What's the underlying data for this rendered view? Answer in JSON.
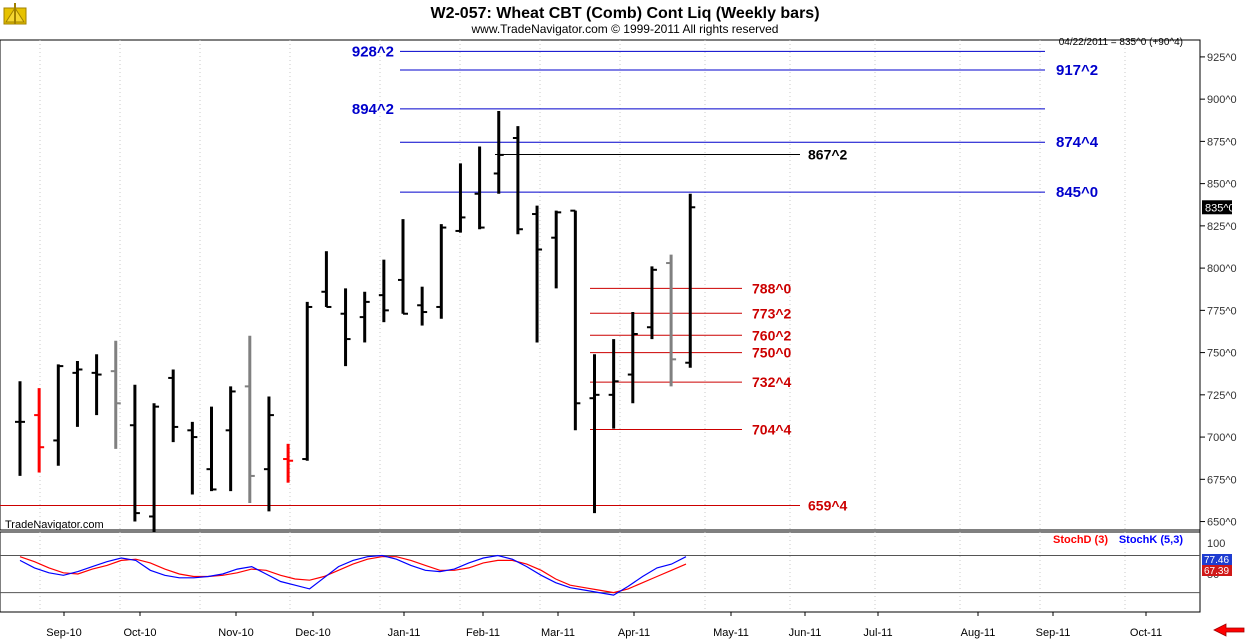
{
  "header": {
    "title": "W2-057:  Wheat CBT (Comb) Cont Liq  (Weekly bars)",
    "subtitle": "www.TradeNavigator.com © 1999-2011 All rights reserved",
    "quote": "04/22/2011 = 835^0 (+90^4)",
    "watermark": "TradeNavigator.com",
    "last_price_label": "835^0"
  },
  "colors": {
    "bar": "#000000",
    "bar_down": "#ff0000",
    "bar_neutral": "#808080",
    "level_blue": "#0000cc",
    "level_red": "#cc0000",
    "stoch_d": "#ff0000",
    "stoch_k": "#0000ff",
    "nav_arrow": "#ff0000"
  },
  "chart_data": [
    {
      "type": "ohlc",
      "y_axis": {
        "min": 645,
        "max": 935,
        "ticks": [
          "650^0",
          "675^0",
          "700^0",
          "725^0",
          "750^0",
          "775^0",
          "800^0",
          "825^0",
          "850^0",
          "875^0",
          "900^0",
          "925^0"
        ],
        "tick_values": [
          650,
          675,
          700,
          725,
          750,
          775,
          800,
          825,
          850,
          875,
          900,
          925
        ]
      },
      "x_axis": {
        "labels": [
          "Sep-10",
          "Oct-10",
          "Nov-10",
          "Dec-10",
          "Jan-11",
          "Feb-11",
          "Mar-11",
          "Apr-11",
          "May-11",
          "Jun-11",
          "Jul-11",
          "Aug-11",
          "Sep-11",
          "Oct-11"
        ]
      },
      "bars": [
        {
          "o": 709,
          "h": 733,
          "l": 677,
          "c": 709,
          "col": "bar"
        },
        {
          "o": 713,
          "h": 729,
          "l": 679,
          "c": 694,
          "col": "bar_down"
        },
        {
          "o": 698,
          "h": 743,
          "l": 683,
          "c": 742,
          "col": "bar"
        },
        {
          "o": 738,
          "h": 745,
          "l": 706,
          "c": 740,
          "col": "bar"
        },
        {
          "o": 738,
          "h": 749,
          "l": 713,
          "c": 737,
          "col": "bar"
        },
        {
          "o": 739,
          "h": 757,
          "l": 693,
          "c": 720,
          "col": "bar_neutral"
        },
        {
          "o": 707,
          "h": 731,
          "l": 650,
          "c": 655,
          "col": "bar"
        },
        {
          "o": 653,
          "h": 720,
          "l": 644,
          "c": 718,
          "col": "bar"
        },
        {
          "o": 735,
          "h": 740,
          "l": 697,
          "c": 706,
          "col": "bar"
        },
        {
          "o": 704,
          "h": 709,
          "l": 666,
          "c": 700,
          "col": "bar"
        },
        {
          "o": 681,
          "h": 718,
          "l": 668,
          "c": 669,
          "col": "bar"
        },
        {
          "o": 704,
          "h": 730,
          "l": 668,
          "c": 727,
          "col": "bar"
        },
        {
          "o": 730,
          "h": 760,
          "l": 661,
          "c": 677,
          "col": "bar_neutral"
        },
        {
          "o": 681,
          "h": 724,
          "l": 656,
          "c": 713,
          "col": "bar"
        },
        {
          "o": 687,
          "h": 696,
          "l": 673,
          "c": 686,
          "col": "bar_down"
        },
        {
          "o": 687,
          "h": 780,
          "l": 686,
          "c": 777,
          "col": "bar"
        },
        {
          "o": 786,
          "h": 810,
          "l": 777,
          "c": 777,
          "col": "bar"
        },
        {
          "o": 773,
          "h": 788,
          "l": 742,
          "c": 758,
          "col": "bar"
        },
        {
          "o": 771,
          "h": 786,
          "l": 756,
          "c": 780,
          "col": "bar"
        },
        {
          "o": 784,
          "h": 805,
          "l": 768,
          "c": 775,
          "col": "bar"
        },
        {
          "o": 793,
          "h": 829,
          "l": 773,
          "c": 773,
          "col": "bar"
        },
        {
          "o": 778,
          "h": 789,
          "l": 766,
          "c": 774,
          "col": "bar"
        },
        {
          "o": 777,
          "h": 826,
          "l": 770,
          "c": 824,
          "col": "bar"
        },
        {
          "o": 822,
          "h": 862,
          "l": 821,
          "c": 830,
          "col": "bar"
        },
        {
          "o": 844,
          "h": 872,
          "l": 823,
          "c": 824,
          "col": "bar"
        },
        {
          "o": 856,
          "h": 893,
          "l": 844,
          "c": 867,
          "col": "bar"
        },
        {
          "o": 877,
          "h": 884,
          "l": 820,
          "c": 823,
          "col": "bar"
        },
        {
          "o": 832,
          "h": 837,
          "l": 756,
          "c": 811,
          "col": "bar"
        },
        {
          "o": 818,
          "h": 834,
          "l": 788,
          "c": 833,
          "col": "bar"
        },
        {
          "o": 834,
          "h": 834,
          "l": 704,
          "c": 720,
          "col": "bar"
        },
        {
          "o": 723,
          "h": 749,
          "l": 655,
          "c": 725,
          "col": "bar"
        },
        {
          "o": 725,
          "h": 758,
          "l": 705,
          "c": 733,
          "col": "bar"
        },
        {
          "o": 737,
          "h": 774,
          "l": 720,
          "c": 761,
          "col": "bar"
        },
        {
          "o": 765,
          "h": 801,
          "l": 758,
          "c": 799,
          "col": "bar"
        },
        {
          "o": 803,
          "h": 808,
          "l": 730,
          "c": 746,
          "col": "bar_neutral"
        },
        {
          "o": 744,
          "h": 844,
          "l": 741,
          "c": 836,
          "col": "bar"
        }
      ],
      "levels_blue": [
        {
          "value": 928.25,
          "label": "928^2",
          "side": "left"
        },
        {
          "value": 917.25,
          "label": "917^2",
          "side": "right"
        },
        {
          "value": 894.25,
          "label": "894^2",
          "side": "left"
        },
        {
          "value": 874.5,
          "label": "874^4",
          "side": "right"
        },
        {
          "value": 845.0,
          "label": "845^0",
          "side": "right"
        }
      ],
      "level_black": {
        "value": 867.25,
        "label": "867^2"
      },
      "levels_red": [
        {
          "value": 788.0,
          "label": "788^0"
        },
        {
          "value": 773.25,
          "label": "773^2"
        },
        {
          "value": 760.25,
          "label": "760^2"
        },
        {
          "value": 750.0,
          "label": "750^0"
        },
        {
          "value": 732.5,
          "label": "732^4"
        },
        {
          "value": 704.5,
          "label": "704^4"
        },
        {
          "value": 659.5,
          "label": "659^4"
        }
      ]
    },
    {
      "type": "line",
      "name": "stochastic",
      "y_axis": {
        "min": 0,
        "max": 105,
        "ticks": [
          "100",
          "50"
        ],
        "tick_values": [
          100,
          50
        ]
      },
      "legend": [
        "StochD (3)",
        "StochK (5,3)"
      ],
      "last_values": {
        "k": "77.46",
        "d": "67.39"
      },
      "series": [
        {
          "name": "StochD (3)",
          "color_key": "stoch_d",
          "values": [
            78,
            70,
            60,
            52,
            50,
            58,
            64,
            72,
            74,
            68,
            58,
            50,
            46,
            46,
            48,
            52,
            58,
            56,
            48,
            42,
            40,
            46,
            56,
            66,
            74,
            78,
            78,
            72,
            64,
            56,
            56,
            60,
            68,
            72,
            72,
            66,
            56,
            42,
            32,
            28,
            24,
            20,
            26,
            36,
            46,
            56,
            66
          ]
        },
        {
          "name": "StochK (5,3)",
          "color_key": "stoch_k",
          "values": [
            72,
            60,
            52,
            48,
            54,
            62,
            70,
            76,
            72,
            56,
            48,
            44,
            44,
            46,
            50,
            58,
            62,
            50,
            38,
            32,
            26,
            44,
            62,
            72,
            78,
            80,
            74,
            64,
            56,
            54,
            58,
            68,
            76,
            80,
            74,
            62,
            48,
            36,
            28,
            24,
            20,
            16,
            30,
            46,
            60,
            66,
            78
          ]
        }
      ]
    }
  ]
}
